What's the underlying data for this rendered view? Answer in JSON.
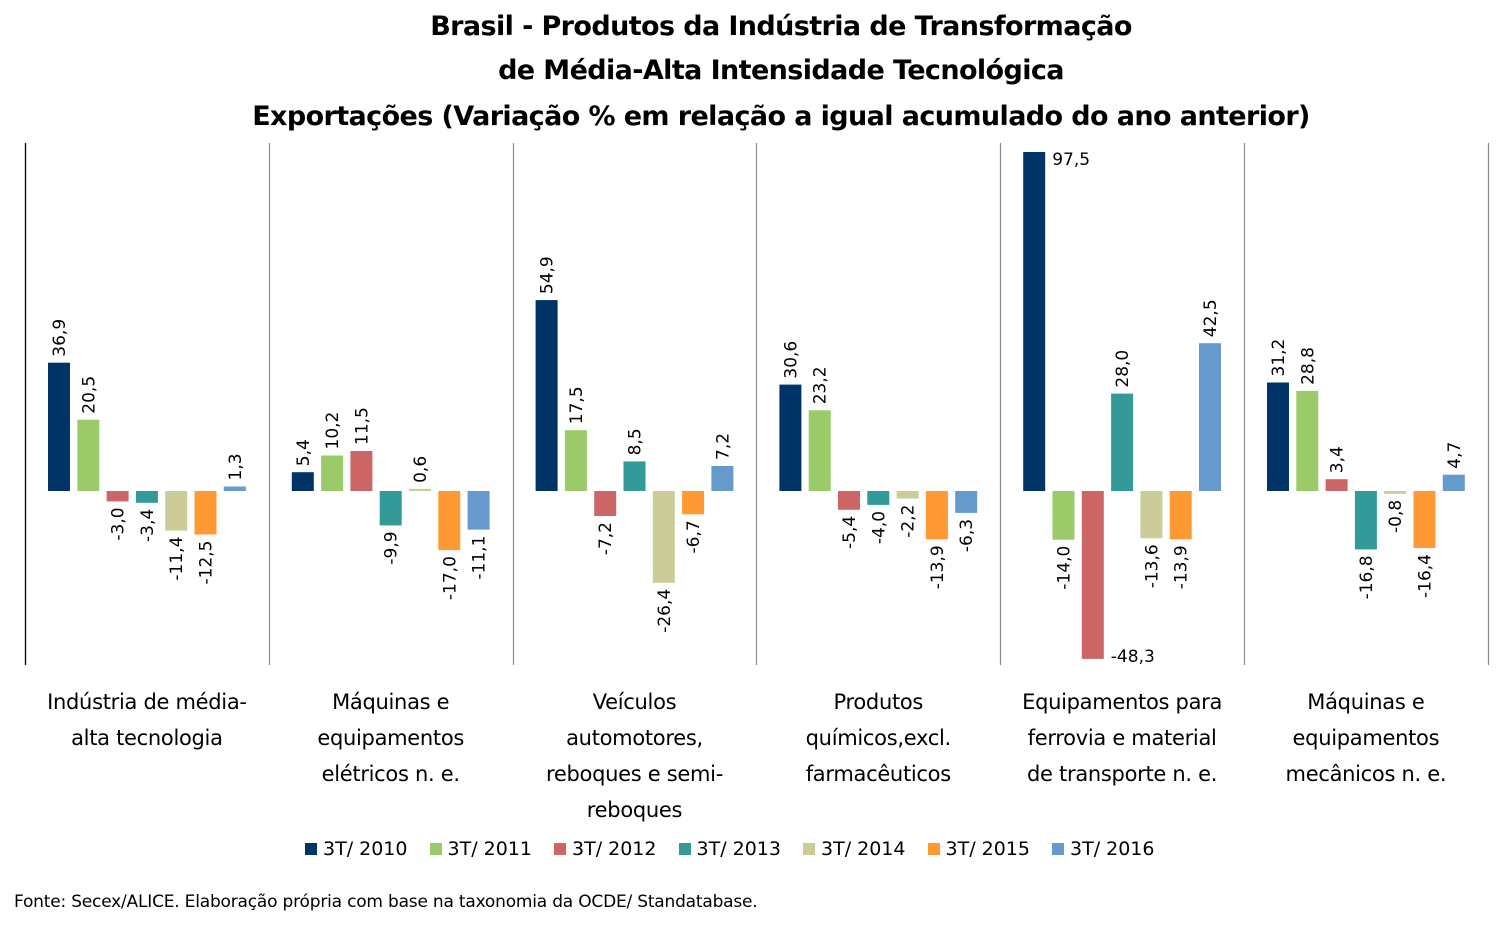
{
  "chart_data": {
    "type": "bar",
    "title": [
      "Brasil - Produtos da Indústria de Transformação",
      "de Média-Alta Intensidade Tecnológica",
      "Exportações (Variação % em relação a igual acumulado do ano anterior)"
    ],
    "xlabel": "",
    "ylabel": "",
    "ylim": [
      -48.3,
      97.5
    ],
    "grid": false,
    "legend_position": "bottom",
    "categories": [
      "Indústria de média-alta tecnologia",
      "Máquinas e equipamentos elétricos n. e.",
      "Veículos automotores, reboques e semi-reboques",
      "Produtos químicos,excl. farmacêuticos",
      "Equipamentos para ferrovia e material de transporte n. e.",
      "Máquinas e equipamentos mecânicos  n. e."
    ],
    "category_lines": [
      [
        "Indústria de média-",
        "alta tecnologia"
      ],
      [
        "Máquinas e",
        "equipamentos",
        "elétricos n. e."
      ],
      [
        "Veículos",
        "automotores,",
        "reboques e semi-",
        "reboques"
      ],
      [
        "Produtos",
        "químicos,excl.",
        "farmacêuticos"
      ],
      [
        "Equipamentos para",
        "ferrovia e material",
        "de transporte n. e."
      ],
      [
        "Máquinas e",
        "equipamentos",
        "mecânicos  n. e."
      ]
    ],
    "series": [
      {
        "name": "3T/ 2010",
        "color": "#003366",
        "values": [
          36.9,
          5.4,
          54.9,
          30.6,
          97.5,
          31.2
        ]
      },
      {
        "name": "3T/ 2011",
        "color": "#9BCB69",
        "values": [
          20.5,
          10.2,
          17.5,
          23.2,
          -14.0,
          28.8
        ]
      },
      {
        "name": "3T/ 2012",
        "color": "#CC6666",
        "values": [
          -3.0,
          11.5,
          -7.2,
          -5.4,
          -48.3,
          3.4
        ]
      },
      {
        "name": "3T/ 2013",
        "color": "#339999",
        "values": [
          -3.4,
          -9.9,
          8.5,
          -4.0,
          28.0,
          -16.8
        ]
      },
      {
        "name": "3T/ 2014",
        "color": "#CCCC99",
        "values": [
          -11.4,
          0.6,
          -26.4,
          -2.2,
          -13.6,
          -0.8
        ]
      },
      {
        "name": "3T/ 2015",
        "color": "#FF9933",
        "values": [
          -12.5,
          -17.0,
          -6.7,
          -13.9,
          -13.9,
          -16.4
        ]
      },
      {
        "name": "3T/ 2016",
        "color": "#6699CC",
        "values": [
          1.3,
          -11.1,
          7.2,
          -6.3,
          42.5,
          4.7
        ]
      }
    ],
    "decimal_separator": ",",
    "source": "Fonte: Secex/ALICE. Elaboração própria com base na taxonomia da OCDE/ Standatabase."
  }
}
